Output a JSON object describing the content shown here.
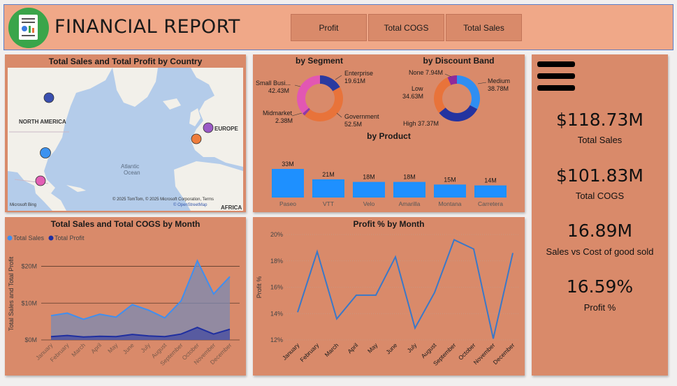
{
  "header": {
    "title": "FINANCIAL REPORT",
    "buttons": [
      "Profit",
      "Total COGS",
      "Total Sales"
    ]
  },
  "map_panel": {
    "title": "Total Sales and Total Profit by Country",
    "labels": {
      "north_america": "NORTH AMERICA",
      "europe": "EUROPE",
      "atlantic": "Atlantic\nOcean",
      "africa": "AFRICA"
    },
    "attribution": "© 2025 TomTom, © 2025 Microsoft Corporation, Terms",
    "attribution2": "© OpenStreetMap",
    "brand": "Microsoft Bing",
    "colors": {
      "land": "#f2f0ea",
      "water": "#b4ccea",
      "bubbles": [
        "#3a4fb0",
        "#3b92f0",
        "#e25fb5",
        "#9b59c6",
        "#ee7c3c"
      ]
    }
  },
  "segment_panel": {
    "seg_title": "by Segment",
    "disc_title": "by Discount Band",
    "prod_title": "by Product",
    "seg_labels": {
      "small": "Small Busi...",
      "small_val": "42.43M",
      "midmarket": "Midmarket",
      "midmarket_val": "2.38M",
      "enterprise": "Enterprise",
      "enterprise_val": "19.61M",
      "government": "Government",
      "government_val": "52.5M"
    },
    "disc_labels": {
      "none": "None 7.94M",
      "low": "Low",
      "low_val": "34.63M",
      "high": "High 37.37M",
      "medium": "Medium",
      "medium_val": "38.78M"
    }
  },
  "kpis": [
    {
      "value": "$118.73M",
      "label": "Total Sales"
    },
    {
      "value": "$101.83M",
      "label": "Total COGS"
    },
    {
      "value": "16.89M",
      "label": "Sales vs Cost of good sold"
    },
    {
      "value": "16.59%",
      "label": "Profit %"
    }
  ],
  "month_panel": {
    "title": "Total Sales and Total COGS by Month",
    "legend": [
      "Total Sales",
      "Total Profit"
    ],
    "ylabel": "Total Sales and Total Profit"
  },
  "profit_panel": {
    "title": "Profit % by Month",
    "ylabel": "Profit %"
  },
  "chart_data": [
    {
      "type": "pie",
      "subtype": "donut",
      "title": "by Segment",
      "categories": [
        "Enterprise",
        "Government",
        "Midmarket",
        "Small Busi..."
      ],
      "values": [
        19.61,
        52.5,
        2.38,
        42.43
      ],
      "labels": [
        "19.61M",
        "52.5M",
        "2.38M",
        "42.43M"
      ],
      "colors": [
        "#2a3aa0",
        "#e8733a",
        "#8e3aa8",
        "#e257b3"
      ]
    },
    {
      "type": "pie",
      "subtype": "donut",
      "title": "by Discount Band",
      "categories": [
        "Medium",
        "High",
        "Low",
        "None"
      ],
      "values": [
        38.78,
        37.37,
        34.63,
        7.94
      ],
      "labels": [
        "38.78M",
        "37.37M",
        "34.63M",
        "7.94M"
      ],
      "colors": [
        "#2f8ef2",
        "#2433a0",
        "#e8733a",
        "#8e2a9a"
      ]
    },
    {
      "type": "bar",
      "title": "by Product",
      "categories": [
        "Paseo",
        "VTT",
        "Velo",
        "Amarilla",
        "Montana",
        "Carretera"
      ],
      "values": [
        33,
        21,
        18,
        18,
        15,
        14
      ],
      "labels": [
        "33M",
        "21M",
        "18M",
        "18M",
        "15M",
        "14M"
      ],
      "color": "#1e90ff"
    },
    {
      "type": "area",
      "title": "Total Sales and Total COGS by Month",
      "ylabel": "Total Sales and Total Profit",
      "categories": [
        "January",
        "February",
        "March",
        "April",
        "May",
        "June",
        "July",
        "August",
        "September",
        "October",
        "November",
        "December"
      ],
      "series": [
        {
          "name": "Total Sales",
          "values": [
            6.6,
            7.3,
            5.6,
            7.0,
            6.2,
            9.6,
            8.1,
            6.0,
            10.6,
            21.5,
            12.5,
            17.2
          ],
          "color": "#3f8ff0"
        },
        {
          "name": "Total Profit",
          "values": [
            0.9,
            1.2,
            0.8,
            1.0,
            0.9,
            1.5,
            1.1,
            0.9,
            1.6,
            3.4,
            1.6,
            2.9
          ],
          "color": "#1f2fa0"
        }
      ],
      "yticks": [
        0,
        10,
        20
      ],
      "ytick_labels": [
        "$0M",
        "$10M",
        "$20M"
      ],
      "ylim": [
        0,
        22
      ]
    },
    {
      "type": "line",
      "title": "Profit % by Month",
      "ylabel": "Profit %",
      "categories": [
        "January",
        "February",
        "March",
        "April",
        "May",
        "June",
        "July",
        "August",
        "September",
        "October",
        "November",
        "December"
      ],
      "series": [
        {
          "values": [
            14.1,
            18.7,
            13.6,
            15.4,
            15.4,
            18.3,
            12.9,
            15.6,
            19.6,
            18.9,
            12.1,
            18.6
          ],
          "color": "#3a78c8"
        }
      ],
      "yticks": [
        12,
        14,
        16,
        18,
        20
      ],
      "ytick_labels": [
        "12%",
        "14%",
        "16%",
        "18%",
        "20%"
      ],
      "ylim": [
        12,
        20
      ]
    }
  ]
}
